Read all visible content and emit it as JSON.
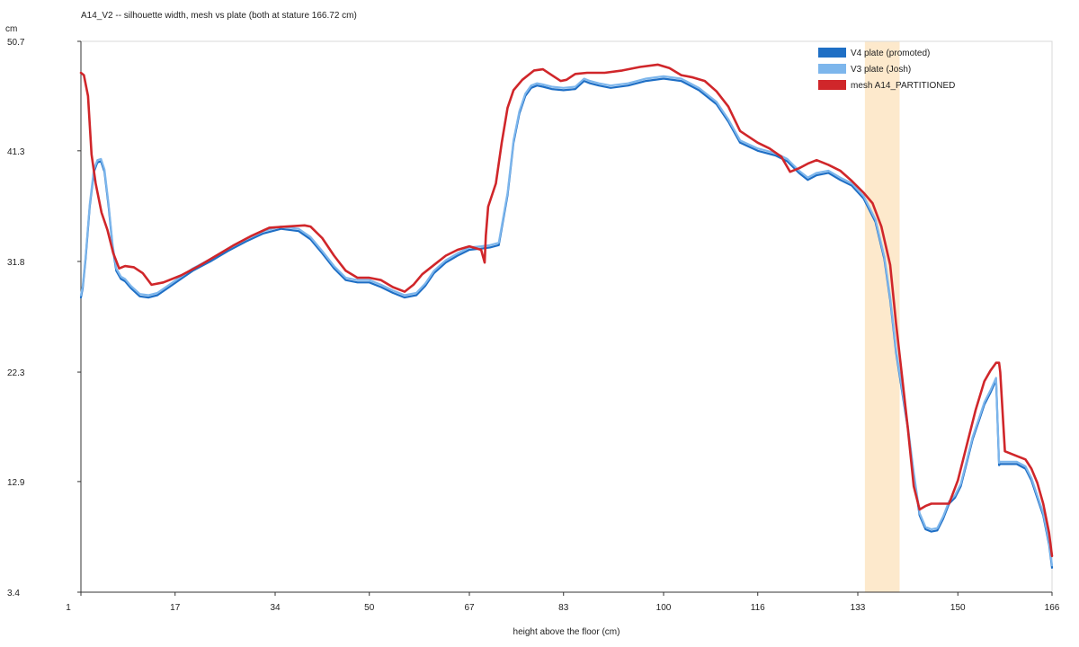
{
  "chart_data": {
    "type": "line",
    "title": "A14_V2 -- silhouette width, mesh vs plate (both at stature 166.72 cm)",
    "xlabel": "height above the floor (cm)",
    "ylabel": "cm",
    "xlim": [
      1,
      166
    ],
    "ylim": [
      3.4,
      50.7
    ],
    "x_ticks": [
      "1",
      "17",
      "34",
      "50",
      "67",
      "83",
      "100",
      "116",
      "133",
      "150",
      "166"
    ],
    "y_ticks": [
      "50.7",
      "41.3",
      "31.8",
      "22.3",
      "12.9",
      "3.4"
    ],
    "grid": false,
    "legend_position": "top-right",
    "highlight_band": {
      "x_start": 134.2,
      "x_end": 140.1,
      "color": "#fde9cc"
    },
    "series": [
      {
        "name": "V4 plate (promoted)",
        "color": "#1f6fc5",
        "x": [
          1,
          1.3,
          1.8,
          2.5,
          3.2,
          3.8,
          4.4,
          5.0,
          5.7,
          6.4,
          7.0,
          7.8,
          8.5,
          9.5,
          11,
          12.5,
          14,
          16,
          18,
          20,
          23,
          26,
          29,
          32,
          35,
          38,
          40,
          42,
          44,
          46,
          48,
          50,
          52,
          54,
          56,
          58,
          59.5,
          61,
          63,
          65,
          67,
          69,
          70.5,
          72,
          73.5,
          74.5,
          75.5,
          76.5,
          77.5,
          78.5,
          79.5,
          81,
          83,
          85,
          86.5,
          87.5,
          89,
          91,
          94,
          97,
          100,
          103,
          106,
          109,
          111,
          113,
          116,
          119,
          121,
          123,
          124.5,
          126,
          128,
          130,
          132,
          134,
          136,
          137.5,
          138.5,
          139.5,
          140.5,
          141.5,
          142.5,
          143.5,
          144.5,
          145.5,
          146.5,
          147.5,
          148.5,
          149.5,
          150.5,
          151.5,
          152.5,
          153.5,
          154.5,
          155.5,
          156.5,
          157,
          157.2,
          158,
          160,
          161.5,
          162.5,
          163.5,
          164.5,
          165.5,
          166
        ],
        "values": [
          28.7,
          29.5,
          32.0,
          36.5,
          39.5,
          40.3,
          40.4,
          39.5,
          36.5,
          33.0,
          31.0,
          30.3,
          30.1,
          29.5,
          28.8,
          28.7,
          28.9,
          29.6,
          30.3,
          31.0,
          31.8,
          32.7,
          33.5,
          34.2,
          34.6,
          34.4,
          33.7,
          32.5,
          31.2,
          30.2,
          30.0,
          30.0,
          29.6,
          29.1,
          28.7,
          28.9,
          29.7,
          30.8,
          31.7,
          32.3,
          32.8,
          32.9,
          33.0,
          33.2,
          37.5,
          42.0,
          44.5,
          46.0,
          46.7,
          46.9,
          46.8,
          46.6,
          46.5,
          46.6,
          47.3,
          47.1,
          46.9,
          46.7,
          46.9,
          47.3,
          47.5,
          47.3,
          46.5,
          45.3,
          43.8,
          42.0,
          41.3,
          40.9,
          40.4,
          39.4,
          38.8,
          39.2,
          39.4,
          38.8,
          38.3,
          37.2,
          35.2,
          32.0,
          28.5,
          24.0,
          20.7,
          17.5,
          13.5,
          10.0,
          8.8,
          8.6,
          8.7,
          9.7,
          11.0,
          11.5,
          12.5,
          14.5,
          16.5,
          18.0,
          19.5,
          20.5,
          21.6,
          14.3,
          14.4,
          14.4,
          14.4,
          14.0,
          13.0,
          11.5,
          10.0,
          7.5,
          5.5
        ]
      },
      {
        "name": "V3 plate (Josh)",
        "color": "#7db6ec",
        "x": [
          1,
          1.3,
          1.8,
          2.5,
          3.2,
          3.8,
          4.4,
          5.0,
          5.7,
          6.4,
          7.0,
          7.8,
          8.5,
          9.5,
          11,
          12.5,
          14,
          16,
          18,
          20,
          23,
          26,
          29,
          32,
          35,
          38,
          40,
          42,
          44,
          46,
          48,
          50,
          52,
          54,
          56,
          58,
          59.5,
          61,
          63,
          65,
          67,
          69,
          70.5,
          72,
          73.5,
          74.5,
          75.5,
          76.5,
          77.5,
          78.5,
          79.5,
          81,
          83,
          85,
          86.5,
          87.5,
          89,
          91,
          94,
          97,
          100,
          103,
          106,
          109,
          111,
          113,
          116,
          119,
          121,
          123,
          124.5,
          126,
          128,
          130,
          132,
          134,
          136,
          137.5,
          138.5,
          139.5,
          140.5,
          141.5,
          142.5,
          143.5,
          144.5,
          145.5,
          146.5,
          147.5,
          148.5,
          149.5,
          150.5,
          151.5,
          152.5,
          153.5,
          154.5,
          155.5,
          156.5,
          157,
          157.2,
          158,
          160,
          161.5,
          162.5,
          163.5,
          164.5,
          165.5,
          166
        ],
        "values": [
          28.9,
          29.7,
          32.2,
          36.7,
          39.7,
          40.5,
          40.6,
          39.7,
          36.7,
          33.2,
          31.2,
          30.5,
          30.3,
          29.7,
          29.0,
          28.9,
          29.1,
          29.8,
          30.5,
          31.2,
          32.0,
          32.9,
          33.7,
          34.4,
          34.8,
          34.6,
          33.9,
          32.7,
          31.4,
          30.4,
          30.2,
          30.2,
          29.8,
          29.3,
          28.9,
          29.1,
          29.9,
          31.0,
          31.9,
          32.5,
          33.0,
          33.1,
          33.2,
          33.4,
          37.7,
          42.2,
          44.7,
          46.2,
          46.9,
          47.1,
          47.0,
          46.8,
          46.7,
          46.8,
          47.5,
          47.3,
          47.1,
          46.9,
          47.1,
          47.5,
          47.7,
          47.5,
          46.7,
          45.5,
          44.0,
          42.2,
          41.5,
          41.1,
          40.6,
          39.6,
          39.0,
          39.4,
          39.6,
          39.0,
          38.5,
          37.4,
          35.4,
          32.2,
          28.7,
          24.2,
          20.9,
          17.7,
          13.7,
          10.2,
          9.0,
          8.8,
          8.9,
          9.9,
          11.2,
          11.7,
          12.7,
          14.7,
          16.7,
          18.2,
          19.7,
          20.7,
          21.8,
          14.5,
          14.6,
          14.6,
          14.6,
          14.2,
          13.2,
          11.7,
          10.2,
          7.7,
          5.7
        ]
      },
      {
        "name": "mesh A14_PARTITIONED",
        "color": "#d0262a",
        "x": [
          1,
          1.5,
          2.2,
          2.8,
          3.5,
          4.5,
          5.5,
          6.5,
          7.5,
          8.5,
          10,
          11.5,
          13,
          15,
          18,
          21,
          24,
          27,
          30,
          33,
          36,
          39,
          40,
          42,
          44,
          46,
          48,
          50,
          52,
          54,
          56,
          57.5,
          59,
          61,
          63,
          65,
          67,
          69,
          69.6,
          69.8,
          70.2,
          71.5,
          72.5,
          73.5,
          74.5,
          76,
          78,
          79.5,
          81,
          82.5,
          83.5,
          85,
          87,
          90,
          93,
          96,
          99,
          101,
          103,
          105,
          107,
          109,
          111,
          113,
          116,
          118,
          120,
          121.5,
          123,
          124.5,
          126,
          128,
          130,
          132,
          134,
          135.5,
          137,
          138.5,
          139.5,
          140.5,
          141.5,
          142.5,
          143.5,
          144.5,
          145.5,
          147,
          148.5,
          150,
          151.5,
          153,
          154.5,
          155.5,
          156.5,
          156.8,
          157,
          157.2,
          158,
          160,
          161.5,
          162.5,
          163.5,
          164.5,
          165.5,
          166
        ],
        "values": [
          48.0,
          47.8,
          46.0,
          41.0,
          38.5,
          36.0,
          34.5,
          32.5,
          31.2,
          31.4,
          31.3,
          30.8,
          29.8,
          30.0,
          30.6,
          31.4,
          32.3,
          33.2,
          34.0,
          34.7,
          34.8,
          34.9,
          34.8,
          33.8,
          32.3,
          31.0,
          30.4,
          30.4,
          30.2,
          29.6,
          29.2,
          29.8,
          30.7,
          31.5,
          32.3,
          32.8,
          33.1,
          32.8,
          31.7,
          34.0,
          36.5,
          38.5,
          42.0,
          45.0,
          46.5,
          47.4,
          48.2,
          48.3,
          47.8,
          47.3,
          47.4,
          47.9,
          48.0,
          48.0,
          48.2,
          48.5,
          48.7,
          48.4,
          47.8,
          47.6,
          47.3,
          46.4,
          45.1,
          43.0,
          42.0,
          41.5,
          40.8,
          39.5,
          39.8,
          40.2,
          40.5,
          40.1,
          39.6,
          38.7,
          37.7,
          36.8,
          34.8,
          31.5,
          26.5,
          22.0,
          17.5,
          12.5,
          10.5,
          10.8,
          11.0,
          11.0,
          11.0,
          13.0,
          16.0,
          19.0,
          21.5,
          22.4,
          23.1,
          23.1,
          23.1,
          22.3,
          15.5,
          15.1,
          14.8,
          14.0,
          12.8,
          11.0,
          8.5,
          6.5
        ]
      }
    ]
  }
}
